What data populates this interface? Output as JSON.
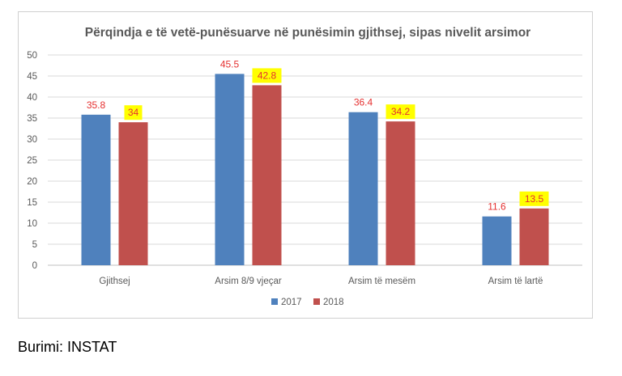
{
  "chart_data": {
    "type": "bar",
    "title": "Përqindja e të vetë-punësuarve në punësimin gjithsej, sipas nivelit arsimor",
    "categories": [
      "Gjithsej",
      "Arsim 8/9 vjeçar",
      "Arsim të mesëm",
      "Arsim të lartë"
    ],
    "series": [
      {
        "name": "2017",
        "values": [
          35.8,
          45.5,
          36.4,
          11.6
        ],
        "labels": [
          "35.8",
          "45.5",
          "36.4",
          "11.6"
        ],
        "color": "#4f81bd",
        "label_highlight": false
      },
      {
        "name": "2018",
        "values": [
          34,
          42.8,
          34.2,
          13.5
        ],
        "labels": [
          "34",
          "42.8",
          "34.2",
          "13.5"
        ],
        "color": "#c0504d",
        "label_highlight": true
      }
    ],
    "ylim": [
      0,
      50
    ],
    "yticks": [
      "0",
      "5",
      "10",
      "15",
      "20",
      "25",
      "30",
      "35",
      "40",
      "45",
      "50"
    ],
    "xlabel": "",
    "ylabel": "",
    "grid": true,
    "legend_position": "bottom",
    "label_color": "#e53030",
    "label_highlight_color": "#ffff00"
  },
  "source": "Burimi: INSTAT"
}
